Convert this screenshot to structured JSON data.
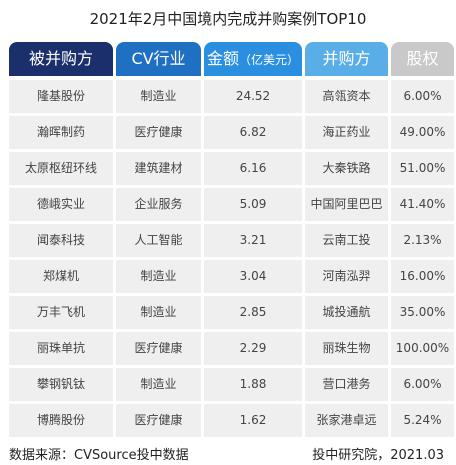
{
  "title": "2021年2月中国境内完成并购案例TOP10",
  "headers": {
    "target": "被并购方",
    "industry": "CV行业",
    "amount": "金额",
    "amount_unit": "（亿美元）",
    "acquirer": "并购方",
    "stake": "股权"
  },
  "rows": [
    {
      "target": "隆基股份",
      "industry": "制造业",
      "amount": "24.52",
      "acquirer": "高瓴资本",
      "stake": "6.00%"
    },
    {
      "target": "瀚晖制药",
      "industry": "医疗健康",
      "amount": "6.82",
      "acquirer": "海正药业",
      "stake": "49.00%"
    },
    {
      "target": "太原枢纽环线",
      "industry": "建筑建材",
      "amount": "6.16",
      "acquirer": "大秦铁路",
      "stake": "51.00%"
    },
    {
      "target": "德峨实业",
      "industry": "企业服务",
      "amount": "5.09",
      "acquirer": "中国阿里巴巴",
      "stake": "41.40%"
    },
    {
      "target": "闻泰科技",
      "industry": "人工智能",
      "amount": "3.21",
      "acquirer": "云南工投",
      "stake": "2.13%"
    },
    {
      "target": "郑煤机",
      "industry": "制造业",
      "amount": "3.04",
      "acquirer": "河南泓羿",
      "stake": "16.00%"
    },
    {
      "target": "万丰飞机",
      "industry": "制造业",
      "amount": "2.85",
      "acquirer": "城投通航",
      "stake": "35.00%"
    },
    {
      "target": "丽珠单抗",
      "industry": "医疗健康",
      "amount": "2.29",
      "acquirer": "丽珠生物",
      "stake": "100.00%"
    },
    {
      "target": "攀钢钒钛",
      "industry": "制造业",
      "amount": "1.88",
      "acquirer": "营口港务",
      "stake": "6.00%"
    },
    {
      "target": "博腾股份",
      "industry": "医疗健康",
      "amount": "1.62",
      "acquirer": "张家港卓远",
      "stake": "5.24%"
    }
  ],
  "footer": {
    "source": "数据来源：CVSource投中数据",
    "credit": "投中研究院，2021.03"
  }
}
